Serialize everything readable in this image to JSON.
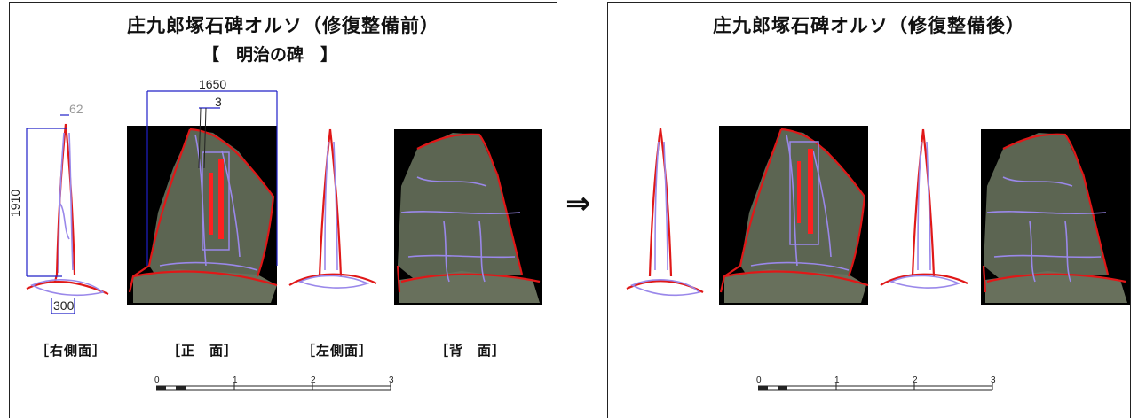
{
  "before": {
    "title": "庄九郎塚石碑オルソ（修復整備前）",
    "subtitle": "【　明治の碑　】",
    "labels": [
      "［右側面］",
      "［正　面］",
      "［左側面］",
      "［背　面］"
    ],
    "dims": {
      "width_total": "1650",
      "thickness_top": "62",
      "height": "1910",
      "base": "300",
      "small": "3"
    }
  },
  "after": {
    "title": "庄九郎塚石碑オルソ（修復整備後）"
  },
  "arrow": "⇒",
  "scale": {
    "ticks": [
      "0",
      "1",
      "2",
      "3"
    ]
  },
  "colors": {
    "outline": "#e01818",
    "cracks": "#9a88ea",
    "dimension": "#2020c8",
    "inscription": "#ff2020"
  }
}
